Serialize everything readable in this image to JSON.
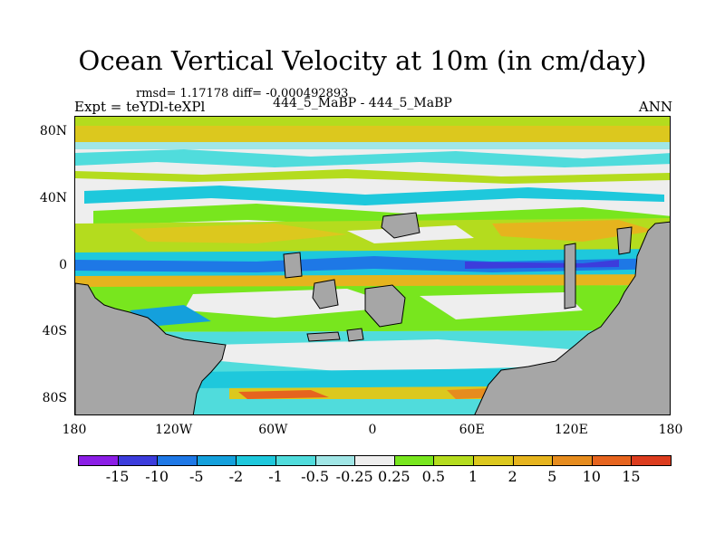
{
  "chart_data": {
    "type": "heatmap",
    "title": "Ocean Vertical Velocity at 10m (in cm/day)",
    "stats_text": "rmsd= 1.17178 diff= -0.000492893",
    "experiment_text": "Expt = teYDl-teXPl",
    "run_text": "444_5_MaBP - 444_5_MaBP",
    "season_text": "ANN",
    "x_tick_labels": [
      "180",
      "120W",
      "60W",
      "0",
      "60E",
      "120E",
      "180"
    ],
    "x_tick_values": [
      -180,
      -120,
      -60,
      0,
      60,
      120,
      180
    ],
    "y_tick_labels": [
      "80N",
      "40N",
      "0",
      "40S",
      "80S"
    ],
    "y_tick_values": [
      80,
      40,
      0,
      -40,
      -80
    ],
    "xlim": [
      -180,
      180
    ],
    "ylim": [
      -90,
      90
    ],
    "colorbar_labels": [
      "-15",
      "-10",
      "-5",
      "-2",
      "-1",
      "-0.5",
      "-0.25",
      "0.25",
      "0.5",
      "1",
      "2",
      "5",
      "10",
      "15"
    ],
    "colorbar_colors": [
      "#8c1ee6",
      "#3c3cdc",
      "#1e78e6",
      "#14a0dc",
      "#1ec8dc",
      "#50dcdc",
      "#a0e6e6",
      "#eeeeee",
      "#78e61e",
      "#b4dc1e",
      "#dcc81e",
      "#e6b41e",
      "#e68c1e",
      "#e6641e",
      "#dc3c1e"
    ],
    "land_color": "#a6a6a6"
  }
}
